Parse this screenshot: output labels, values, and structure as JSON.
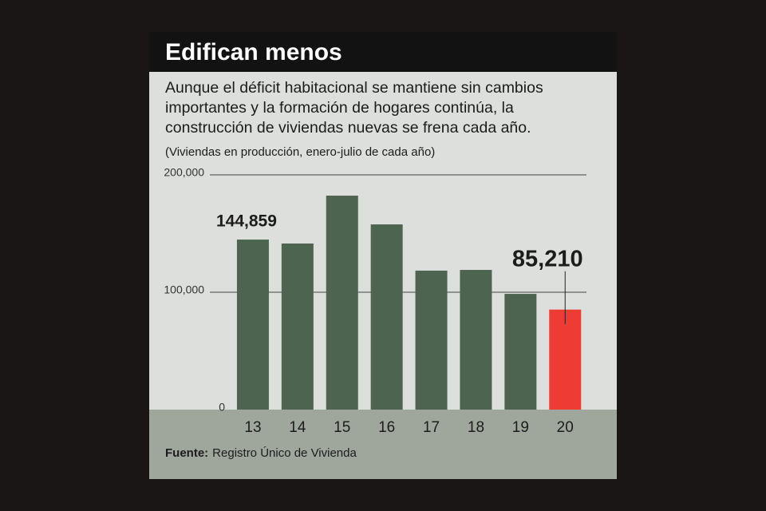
{
  "chart_data": {
    "type": "bar",
    "title": "Edifican menos",
    "subtitle": "Aunque el déficit habitacional se mantiene sin cambios importantes y la formación de hogares continúa, la construcción de viviendas nuevas se frena cada año.",
    "note": "(Viviendas en producción, enero-julio de cada año)",
    "categories": [
      "13",
      "14",
      "15",
      "16",
      "17",
      "18",
      "19",
      "20"
    ],
    "values": [
      144859,
      141500,
      182300,
      157800,
      118400,
      119000,
      98600,
      85210
    ],
    "value_labels": [
      "144,859",
      null,
      null,
      null,
      null,
      null,
      null,
      "85,210"
    ],
    "colors": [
      "#4c6450",
      "#4c6450",
      "#4c6450",
      "#4c6450",
      "#4c6450",
      "#4c6450",
      "#4c6450",
      "#ee3b33"
    ],
    "ylim": [
      0,
      200000
    ],
    "yticks": [
      0,
      {
        "value": 100000,
        "label": "100,000"
      },
      {
        "value": 200000,
        "label": "200,000"
      }
    ],
    "grid": true,
    "source_label": "Fuente:",
    "source": "Registro Único de Vivienda"
  }
}
